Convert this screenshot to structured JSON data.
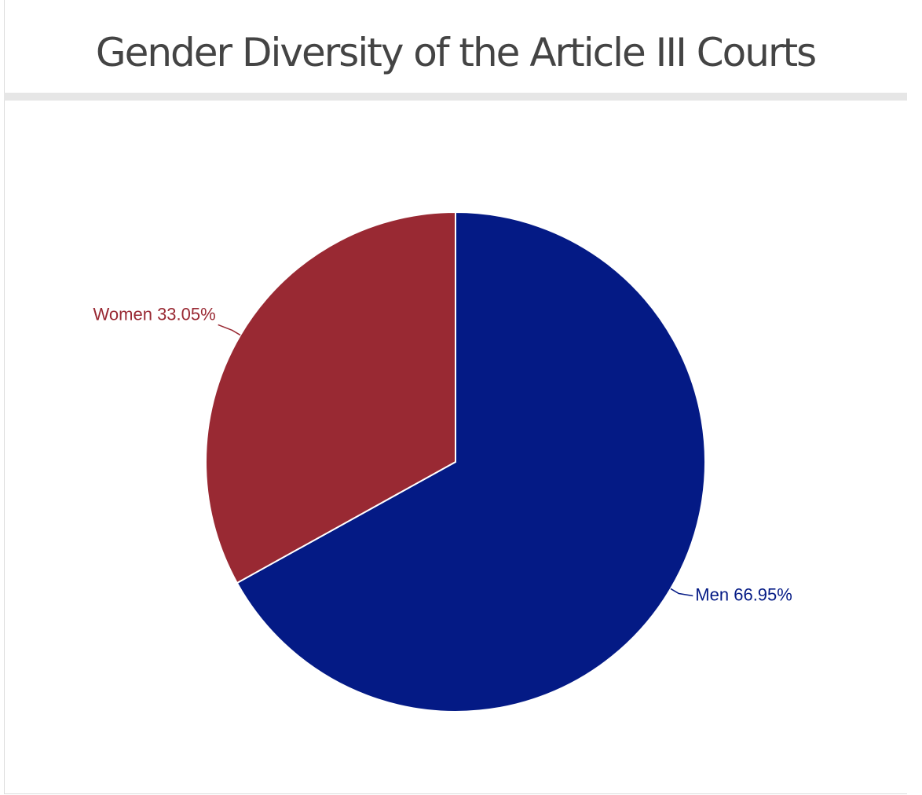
{
  "chart_data": {
    "type": "pie",
    "title": "Gender Diversity of the Article III Courts",
    "categories": [
      "Men",
      "Women"
    ],
    "values": [
      66.95,
      33.05
    ],
    "value_labels": [
      "66.95%",
      "33.05%"
    ],
    "colors": [
      "#041a85",
      "#992933"
    ]
  }
}
